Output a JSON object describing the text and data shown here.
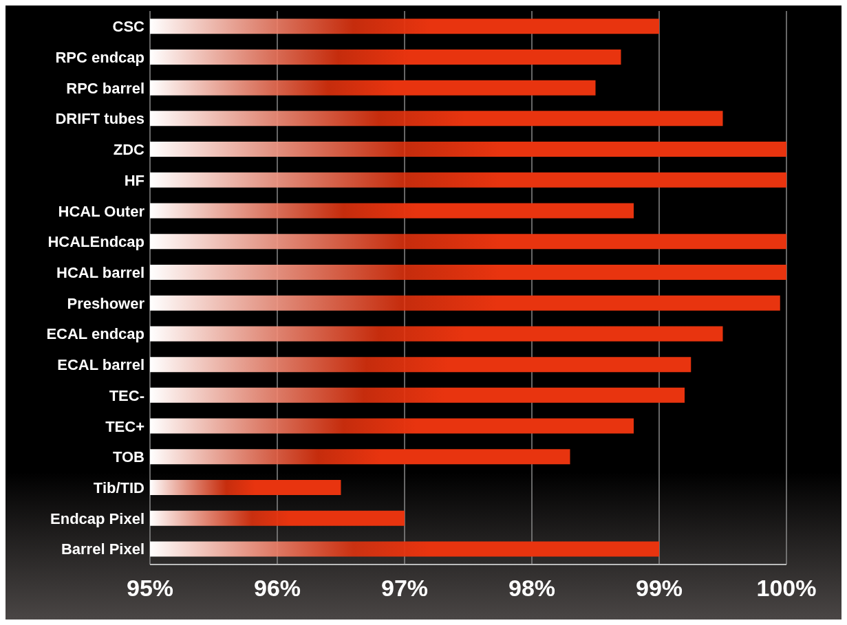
{
  "chart_data": {
    "type": "bar",
    "orientation": "horizontal",
    "categories": [
      "CSC",
      "RPC endcap",
      "RPC barrel",
      "DRIFT tubes",
      "ZDC",
      "HF",
      "HCAL Outer",
      "HCALEndcap",
      "HCAL barrel",
      "Preshower",
      "ECAL endcap",
      "ECAL barrel",
      "TEC-",
      "TEC+",
      "TOB",
      "Tib/TID",
      "Endcap Pixel",
      "Barrel Pixel"
    ],
    "values": [
      99.0,
      98.7,
      98.5,
      99.5,
      100,
      100,
      98.8,
      100,
      100,
      99.95,
      99.5,
      99.25,
      99.2,
      98.8,
      98.3,
      96.5,
      97.0,
      99.0
    ],
    "color": "#e8340f",
    "xlim": [
      95,
      100
    ],
    "xticks": [
      {
        "value": 95,
        "label": "95%"
      },
      {
        "value": 96,
        "label": "96%"
      },
      {
        "value": 97,
        "label": "97%"
      },
      {
        "value": 98,
        "label": "98%"
      },
      {
        "value": 99,
        "label": "99%"
      },
      {
        "value": 100,
        "label": "100%"
      }
    ],
    "grid": "x"
  }
}
